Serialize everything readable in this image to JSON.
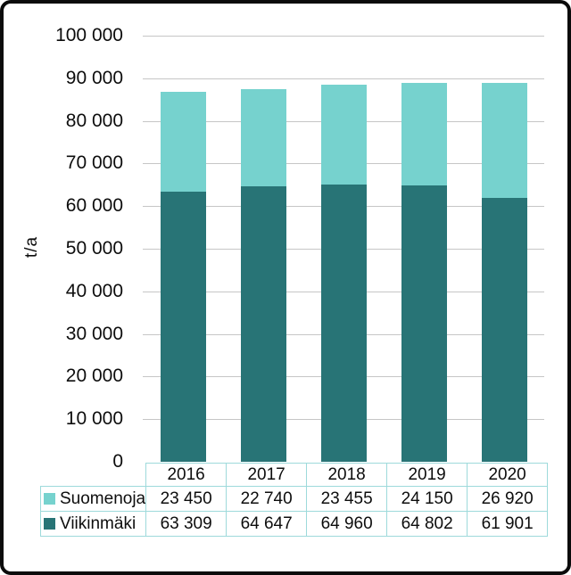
{
  "chart_data": {
    "type": "bar",
    "stacked": true,
    "categories": [
      "2016",
      "2017",
      "2018",
      "2019",
      "2020"
    ],
    "series": [
      {
        "name": "Suomenoja",
        "color": "#76d2ce",
        "values": [
          23450,
          22740,
          23455,
          24150,
          26920
        ]
      },
      {
        "name": "Viikinmäki",
        "color": "#287476",
        "values": [
          63309,
          64647,
          64960,
          64802,
          61901
        ]
      }
    ],
    "stack_order_bottom_to_top": [
      "Viikinmäki",
      "Suomenoja"
    ],
    "title": "",
    "xlabel": "",
    "ylabel": "t/a",
    "ylim": [
      0,
      100000
    ],
    "ytick_step": 10000,
    "grid": true,
    "legend_position": "table-left",
    "number_format": "space-thousands"
  },
  "y_axis": {
    "tick_labels_top_to_bottom": [
      "100 000",
      "90 000",
      "80 000",
      "70 000",
      "60 000",
      "50 000",
      "40 000",
      "30 000",
      "20 000",
      "10 000",
      "0"
    ]
  },
  "table": {
    "year_header": [
      "2016",
      "2017",
      "2018",
      "2019",
      "2020"
    ],
    "rows": [
      {
        "label": "Suomenoja",
        "swatch_color": "#76d2ce",
        "values": [
          "23 450",
          "22 740",
          "23 455",
          "24 150",
          "26 920"
        ]
      },
      {
        "label": "Viikinmäki",
        "swatch_color": "#287476",
        "values": [
          "63 309",
          "64 647",
          "64 960",
          "64 802",
          "61 901"
        ]
      }
    ]
  },
  "colors": {
    "suomenoja": "#76d2ce",
    "viikinmaki": "#287476",
    "gridline": "#c6c6c6",
    "table_border": "#9edadb",
    "text": "#0d0d0d",
    "frame_border": "#0b0b0b",
    "background": "#ffffff"
  }
}
